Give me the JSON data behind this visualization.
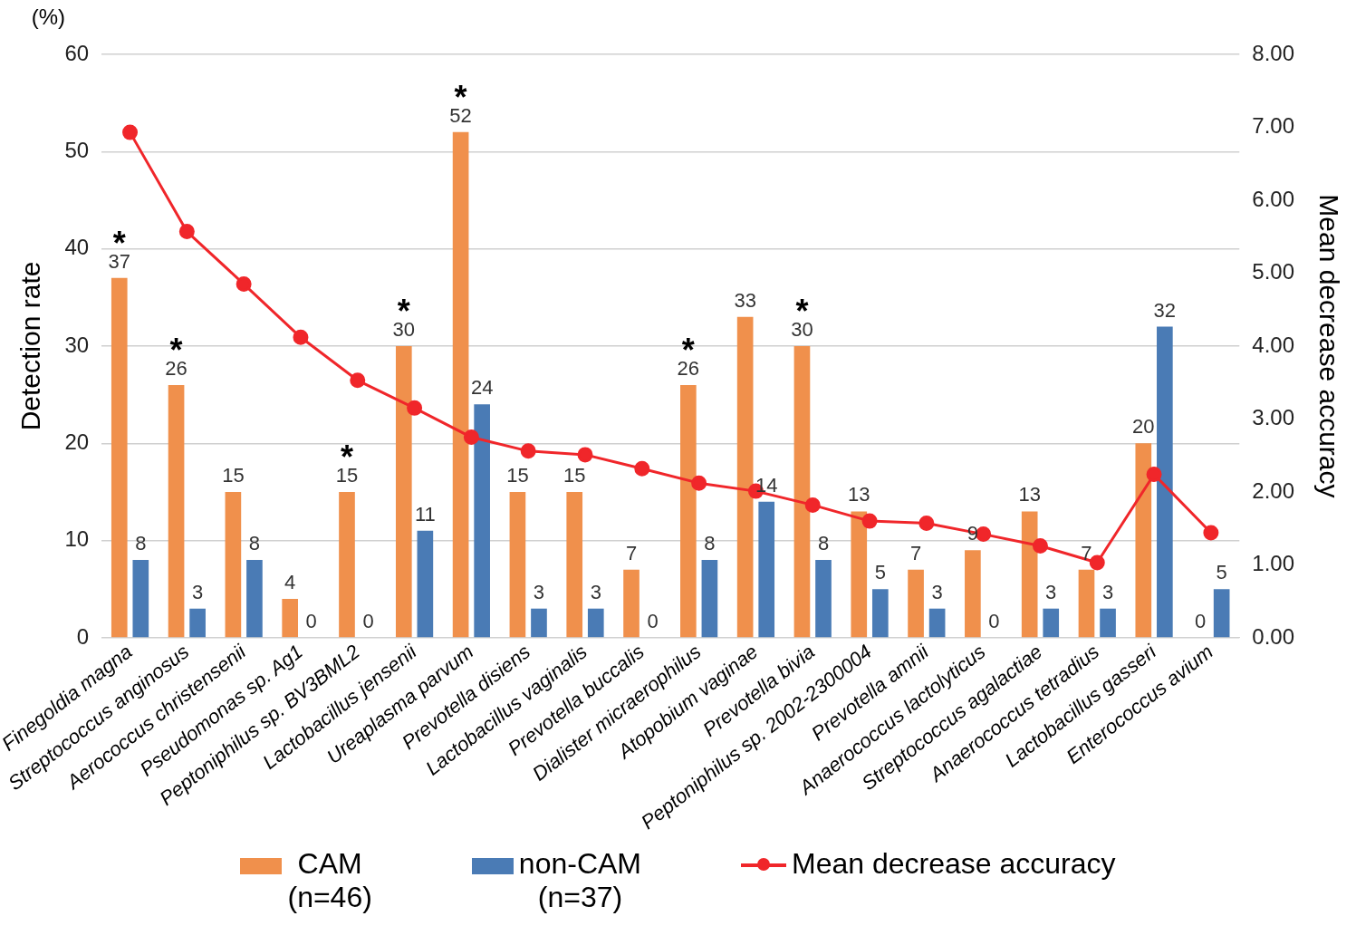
{
  "chart_data": {
    "type": "bar",
    "xlabel": null,
    "ylabel": "Detection rate",
    "y2label": "Mean decrease accuracy",
    "categories": [
      "Finegoldia magna",
      "Streptococcus anginosus",
      "Aerococcus christensenii",
      "Pseudomonas sp. Ag1",
      "Peptoniphilus sp. BV3BML2",
      "Lactobacillus jensenii",
      "Ureaplasma parvum",
      "Prevotella disiens",
      "Lactobacillus vaginalis",
      "Prevotella buccalis",
      "Dialister micraerophilus",
      "Atopobium vaginae",
      "Prevotella bivia",
      "Peptoniphilus sp. 2002-2300004",
      "Prevotella amnii",
      "Anaerococcus lactolyticus",
      "Streptococcus agalactiae",
      "Anaerococcus tetradius",
      "Lactobacillus gasseri",
      "Enterococcus avium"
    ],
    "series": [
      {
        "name": "CAM\n(n=46)",
        "color": "#f0904c",
        "values": [
          37,
          26,
          15,
          4,
          15,
          30,
          52,
          15,
          15,
          7,
          26,
          33,
          30,
          13,
          7,
          9,
          13,
          7,
          20,
          0
        ],
        "value_labels": [
          "37",
          "26",
          "15",
          "4",
          "15",
          "30",
          "52",
          "15",
          "15",
          "7",
          "26",
          "33",
          "30",
          "13",
          "7",
          "9",
          "13",
          "7",
          "20",
          "0"
        ]
      },
      {
        "name": "non-CAM\n(n=37)",
        "color": "#4a7bb5",
        "values": [
          8,
          3,
          8,
          0,
          0,
          11,
          24,
          3,
          3,
          0,
          8,
          14,
          8,
          5,
          3,
          0,
          3,
          3,
          32,
          5
        ],
        "value_labels": [
          "8",
          "3",
          "8",
          "0",
          "0",
          "11",
          "24",
          "3",
          "3",
          "0",
          "8",
          "14",
          "8",
          "5",
          "3",
          "0",
          "3",
          "3",
          "32",
          "5"
        ]
      },
      {
        "name": "Mean decrease accuracy",
        "type": "line",
        "axis": "y2",
        "color": "#f0262a",
        "values": [
          6.93,
          5.57,
          4.85,
          4.12,
          3.53,
          3.15,
          2.75,
          2.56,
          2.51,
          2.32,
          2.12,
          2.01,
          1.82,
          1.6,
          1.57,
          1.42,
          1.26,
          1.03,
          2.24,
          1.44
        ]
      }
    ],
    "ylim": [
      0,
      60
    ],
    "yticks": [
      0,
      10,
      20,
      30,
      40,
      50,
      60
    ],
    "y2lim": [
      0,
      8
    ],
    "y2ticks": [
      {
        "value": 0,
        "label": "0.00"
      },
      {
        "value": 1,
        "label": "1.00"
      },
      {
        "value": 2,
        "label": "2.00"
      },
      {
        "value": 3,
        "label": "3.00"
      },
      {
        "value": 4,
        "label": "4.00"
      },
      {
        "value": 5,
        "label": "5.00"
      },
      {
        "value": 6,
        "label": "6.00"
      },
      {
        "value": 7,
        "label": "7.00"
      },
      {
        "value": 8,
        "label": "8.00"
      }
    ],
    "annotations": [
      "(%)",
      {
        "text": "*",
        "x": "Finegoldia magna",
        "y": 37
      },
      {
        "text": "*",
        "x": "Streptococcus anginosus",
        "y": 26
      },
      {
        "text": "*",
        "x": "Peptoniphilus sp. BV3BML2",
        "y": 15
      },
      {
        "text": "*",
        "x": "Lactobacillus jensenii",
        "y": 30
      },
      {
        "text": "*",
        "x": "Ureaplasma parvum",
        "y": 52
      },
      {
        "text": "*",
        "x": "Dialister micraerophilus",
        "y": 26
      },
      {
        "text": "*",
        "x": "Prevotella bivia",
        "y": 30
      }
    ],
    "grid": "y",
    "legend": "bottom",
    "marker": "circle",
    "line_style": "solid"
  }
}
